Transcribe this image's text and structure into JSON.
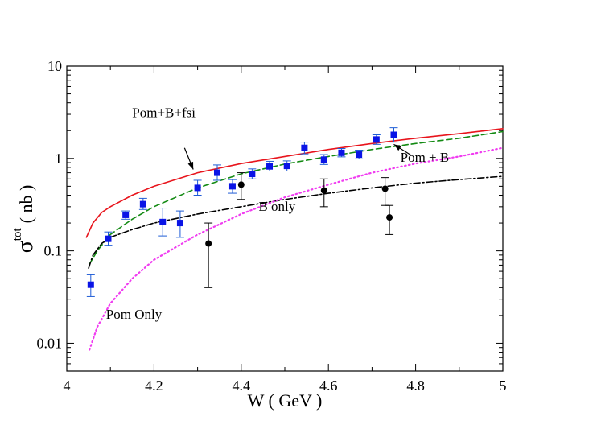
{
  "chart_data": {
    "type": "scatter",
    "title": "",
    "xlabel": "W ( GeV )",
    "ylabel_sigma": "σ",
    "ylabel_sup": "tot",
    "ylabel_unit": "( nb )",
    "xlim": [
      4.0,
      5.0
    ],
    "ylim": [
      0.005,
      10
    ],
    "yscale": "log",
    "x_ticks": [
      {
        "value": 4.0,
        "label": "4"
      },
      {
        "value": 4.2,
        "label": "4.2"
      },
      {
        "value": 4.4,
        "label": "4.4"
      },
      {
        "value": 4.6,
        "label": "4.6"
      },
      {
        "value": 4.8,
        "label": "4.8"
      },
      {
        "value": 5.0,
        "label": "5"
      }
    ],
    "y_ticks": [
      {
        "value": 0.01,
        "label": "0.01"
      },
      {
        "value": 0.1,
        "label": "0.1"
      },
      {
        "value": 1,
        "label": "1"
      },
      {
        "value": 10,
        "label": "10"
      }
    ],
    "series": [
      {
        "name": "Pom+B+fsi",
        "kind": "line",
        "color": "#e8141c",
        "dash": "solid",
        "x": [
          4.045,
          4.06,
          4.08,
          4.1,
          4.15,
          4.2,
          4.3,
          4.4,
          4.5,
          4.6,
          4.7,
          4.8,
          4.9,
          5.0
        ],
        "y": [
          0.14,
          0.2,
          0.26,
          0.3,
          0.4,
          0.5,
          0.7,
          0.88,
          1.05,
          1.25,
          1.45,
          1.65,
          1.85,
          2.1
        ]
      },
      {
        "name": "Pom + B",
        "kind": "line",
        "color": "#138a13",
        "dash": "dashed",
        "x": [
          4.052,
          4.07,
          4.1,
          4.15,
          4.2,
          4.3,
          4.4,
          4.5,
          4.6,
          4.7,
          4.8,
          4.9,
          5.0
        ],
        "y": [
          0.072,
          0.1,
          0.15,
          0.22,
          0.3,
          0.48,
          0.68,
          0.87,
          1.05,
          1.25,
          1.45,
          1.65,
          1.95
        ]
      },
      {
        "name": "B only",
        "kind": "line",
        "color": "#000000",
        "dash": "dashdot",
        "x": [
          4.05,
          4.06,
          4.08,
          4.1,
          4.15,
          4.2,
          4.3,
          4.4,
          4.5,
          4.6,
          4.7,
          4.8,
          4.9,
          5.0
        ],
        "y": [
          0.065,
          0.09,
          0.12,
          0.14,
          0.17,
          0.2,
          0.25,
          0.3,
          0.36,
          0.42,
          0.48,
          0.54,
          0.59,
          0.64
        ]
      },
      {
        "name": "Pom Only",
        "kind": "line",
        "color": "#f03cf0",
        "dash": "dotted",
        "x": [
          4.052,
          4.07,
          4.1,
          4.15,
          4.2,
          4.3,
          4.4,
          4.5,
          4.6,
          4.7,
          4.8,
          4.9,
          5.0
        ],
        "y": [
          0.0085,
          0.015,
          0.027,
          0.05,
          0.08,
          0.15,
          0.25,
          0.38,
          0.52,
          0.7,
          0.88,
          1.05,
          1.3
        ]
      },
      {
        "name": "data-squares",
        "kind": "points",
        "marker": "square",
        "color": "#0a14e6",
        "errcolor": "#1e5cd6",
        "points": [
          {
            "x": 4.055,
            "y": 0.043,
            "lo": 0.032,
            "hi": 0.055
          },
          {
            "x": 4.095,
            "y": 0.135,
            "lo": 0.115,
            "hi": 0.16
          },
          {
            "x": 4.135,
            "y": 0.245,
            "lo": 0.22,
            "hi": 0.27
          },
          {
            "x": 4.175,
            "y": 0.32,
            "lo": 0.28,
            "hi": 0.37
          },
          {
            "x": 4.22,
            "y": 0.205,
            "lo": 0.145,
            "hi": 0.29
          },
          {
            "x": 4.26,
            "y": 0.2,
            "lo": 0.14,
            "hi": 0.27
          },
          {
            "x": 4.3,
            "y": 0.48,
            "lo": 0.4,
            "hi": 0.58
          },
          {
            "x": 4.345,
            "y": 0.7,
            "lo": 0.58,
            "hi": 0.85
          },
          {
            "x": 4.38,
            "y": 0.5,
            "lo": 0.42,
            "hi": 0.59
          },
          {
            "x": 4.425,
            "y": 0.68,
            "lo": 0.6,
            "hi": 0.77
          },
          {
            "x": 4.465,
            "y": 0.82,
            "lo": 0.73,
            "hi": 0.93
          },
          {
            "x": 4.505,
            "y": 0.83,
            "lo": 0.73,
            "hi": 0.94
          },
          {
            "x": 4.545,
            "y": 1.3,
            "lo": 1.12,
            "hi": 1.5
          },
          {
            "x": 4.59,
            "y": 0.97,
            "lo": 0.86,
            "hi": 1.1
          },
          {
            "x": 4.63,
            "y": 1.15,
            "lo": 1.04,
            "hi": 1.28
          },
          {
            "x": 4.67,
            "y": 1.1,
            "lo": 0.99,
            "hi": 1.23
          },
          {
            "x": 4.71,
            "y": 1.6,
            "lo": 1.42,
            "hi": 1.8
          },
          {
            "x": 4.75,
            "y": 1.8,
            "lo": 1.5,
            "hi": 2.15
          }
        ]
      },
      {
        "name": "data-circles",
        "kind": "points",
        "marker": "circle",
        "color": "#000000",
        "errcolor": "#000000",
        "points": [
          {
            "x": 4.325,
            "y": 0.12,
            "lo": 0.04,
            "hi": 0.2
          },
          {
            "x": 4.4,
            "y": 0.52,
            "lo": 0.36,
            "hi": 0.7
          },
          {
            "x": 4.59,
            "y": 0.45,
            "lo": 0.3,
            "hi": 0.6
          },
          {
            "x": 4.73,
            "y": 0.47,
            "lo": 0.31,
            "hi": 0.62
          },
          {
            "x": 4.74,
            "y": 0.23,
            "lo": 0.15,
            "hi": 0.31
          }
        ]
      }
    ],
    "annotations": [
      {
        "text": "Pom+B+fsi",
        "x": 4.15,
        "y": 2.8,
        "arrow_from": [
          4.27,
          1.3
        ],
        "arrow_to": [
          4.29,
          0.76
        ]
      },
      {
        "text": "Pom + B",
        "x": 4.765,
        "y": 0.92,
        "arrow_from": [
          4.79,
          1.08
        ],
        "arrow_to": [
          4.75,
          1.42
        ]
      },
      {
        "text": "B only",
        "x": 4.44,
        "y": 0.27
      },
      {
        "text": "Pom Only",
        "x": 4.09,
        "y": 0.0185
      }
    ]
  }
}
